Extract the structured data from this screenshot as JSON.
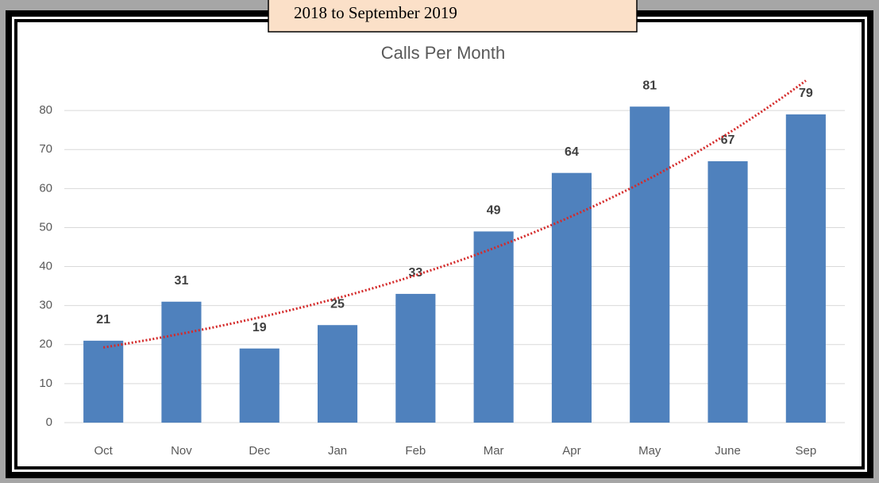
{
  "callout": {
    "text": "2018 to September 2019"
  },
  "chart_data": {
    "type": "bar",
    "title": "Calls Per Month",
    "categories": [
      "Oct",
      "Nov",
      "Dec",
      "Jan",
      "Feb",
      "Mar",
      "Apr",
      "May",
      "June",
      "Sep"
    ],
    "values": [
      21,
      31,
      19,
      25,
      33,
      49,
      64,
      81,
      67,
      79
    ],
    "color": "#4f81bd",
    "ylim": [
      0,
      90
    ],
    "yticks": [
      0,
      10,
      20,
      30,
      40,
      50,
      60,
      70,
      80
    ],
    "grid": true,
    "trendline": {
      "type": "exponential",
      "color": "#d42a2a"
    }
  }
}
